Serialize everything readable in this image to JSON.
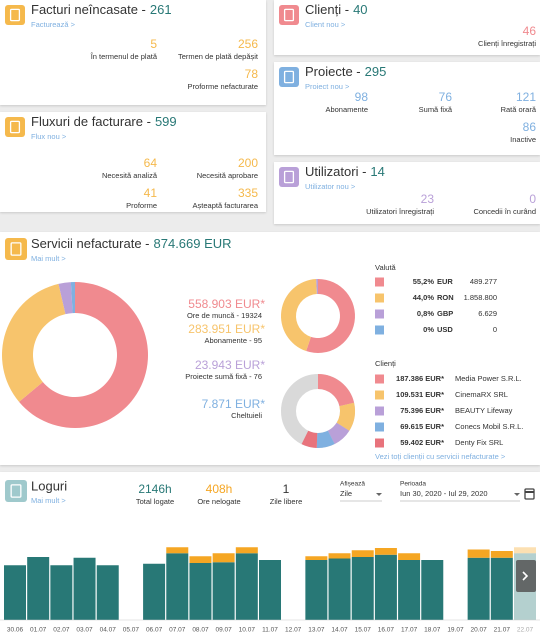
{
  "cards": {
    "invoices": {
      "title": "Facturi neîncasate -",
      "count": 261,
      "link": "Facturează >",
      "stats": [
        {
          "value": 5,
          "label": "În termenul de plată"
        },
        {
          "value": 256,
          "label": "Termen de plată depășit"
        },
        {
          "value": 78,
          "label": "Proforme nefacturate"
        }
      ]
    },
    "flows": {
      "title": "Fluxuri de facturare -",
      "count": 599,
      "link": "Flux nou >",
      "stats": [
        {
          "value": 64,
          "label": "Necesită analiză"
        },
        {
          "value": 200,
          "label": "Necesită aprobare"
        },
        {
          "value": 41,
          "label": "Proforme"
        },
        {
          "value": 335,
          "label": "Așteaptă facturarea"
        }
      ]
    },
    "clients": {
      "title": "Clienți -",
      "count": 40,
      "link": "Client nou >",
      "stats": [
        {
          "value": 46,
          "label": "Clienți înregistrați"
        }
      ]
    },
    "projects": {
      "title": "Proiecte -",
      "count": 295,
      "link": "Proiect nou >",
      "stats": [
        {
          "value": 98,
          "label": "Abonamente"
        },
        {
          "value": 76,
          "label": "Sumă fixă"
        },
        {
          "value": 121,
          "label": "Rată orară"
        },
        {
          "value": 86,
          "label": "Inactive"
        }
      ]
    },
    "users": {
      "title": "Utilizatori -",
      "count": 14,
      "link": "Utilizator nou >",
      "stats": [
        {
          "value": 23,
          "label": "Utilizatori înregistrați"
        },
        {
          "value": 0,
          "label": "Concedii în curând"
        }
      ]
    }
  },
  "servicii": {
    "title": "Servicii nefacturate -",
    "total": 874669,
    "total_label": "874.669 EUR",
    "link": "Mai mult >",
    "breakdown": [
      {
        "value": 558903,
        "value_label": "558.903 EUR*",
        "label": "Ore de muncă - 19324",
        "color": "#f08a8f"
      },
      {
        "value": 283951,
        "value_label": "283.951 EUR*",
        "label": "Abonamente - 95",
        "color": "#f7c46c"
      },
      {
        "value": 23943,
        "value_label": "23.943 EUR*",
        "label": "Proiecte sumă fixă - 76",
        "color": "#b9a0d8"
      },
      {
        "value": 7871,
        "value_label": "7.871 EUR*",
        "label": "Cheltuieli",
        "color": "#7fb0e0"
      }
    ],
    "currency": {
      "title": "Valută",
      "rows": [
        {
          "percent": 55.2,
          "percent_label": "55,2%",
          "code": "EUR",
          "amount": 489277,
          "amount_label": "489.277",
          "color": "#f08a8f"
        },
        {
          "percent": 44.0,
          "percent_label": "44,0%",
          "code": "RON",
          "amount": 1858800,
          "amount_label": "1.858.800",
          "color": "#f7c46c"
        },
        {
          "percent": 0.8,
          "percent_label": "0,8%",
          "code": "GBP",
          "amount": 6629,
          "amount_label": "6.629",
          "color": "#b9a0d8"
        },
        {
          "percent": 0,
          "percent_label": "0%",
          "code": "USD",
          "amount": 0,
          "amount_label": "0",
          "color": "#7fb0e0"
        }
      ]
    },
    "clients": {
      "title": "Clienți",
      "link": "Vezi toți clienții cu servicii nefacturate >",
      "rows": [
        {
          "value": 187386,
          "value_label": "187.386 EUR*",
          "name": "Media Power S.R.L.",
          "color": "#f08a8f"
        },
        {
          "value": 109531,
          "value_label": "109.531 EUR*",
          "name": "CinemaRX SRL",
          "color": "#f7c46c"
        },
        {
          "value": 75396,
          "value_label": "75.396 EUR*",
          "name": "BEAUTY Lifeway",
          "color": "#b9a0d8"
        },
        {
          "value": 69615,
          "value_label": "69.615 EUR*",
          "name": "Conecs Mobil S.R.L.",
          "color": "#7fb0e0"
        },
        {
          "value": 59402,
          "value_label": "59.402 EUR*",
          "name": "Denty Fix SRL",
          "color": "#e8737c"
        }
      ]
    }
  },
  "loguri": {
    "title": "Loguri",
    "link": "Mai mult >",
    "stats": [
      {
        "value": "2146h",
        "label": "Total logate"
      },
      {
        "value": "408h",
        "label": "Ore nelogate"
      },
      {
        "value": 1,
        "label": "Zile libere"
      }
    ],
    "display_label": "Afișează",
    "display_value": "Zile",
    "period_label": "Perioada",
    "period_value": "Iun 30, 2020 - Iul 29, 2020"
  },
  "chart_data": {
    "type": "bar",
    "stacked": true,
    "dim_last": true,
    "ylim": [
      0,
      120
    ],
    "categories": [
      "30.06",
      "01.07",
      "02.07",
      "03.07",
      "04.07",
      "05.07",
      "06.07",
      "07.07",
      "08.07",
      "09.07",
      "10.07",
      "11.07",
      "12.07",
      "13.07",
      "14.07",
      "15.07",
      "16.07",
      "17.07",
      "18.07",
      "19.07",
      "20.07",
      "21.07",
      "22.07"
    ],
    "series": [
      {
        "color": "#287876",
        "values": [
          73,
          84,
          73,
          83,
          73,
          null,
          75,
          89,
          76,
          77,
          89,
          80,
          null,
          80,
          82,
          84,
          87,
          80,
          80,
          null,
          83,
          83,
          89
        ]
      },
      {
        "color": "#f5a623",
        "values": [
          0,
          0,
          0,
          0,
          0,
          null,
          0,
          8,
          9,
          12,
          8,
          0,
          null,
          5,
          7,
          9,
          9,
          9,
          0,
          null,
          11,
          9,
          8
        ]
      }
    ]
  }
}
